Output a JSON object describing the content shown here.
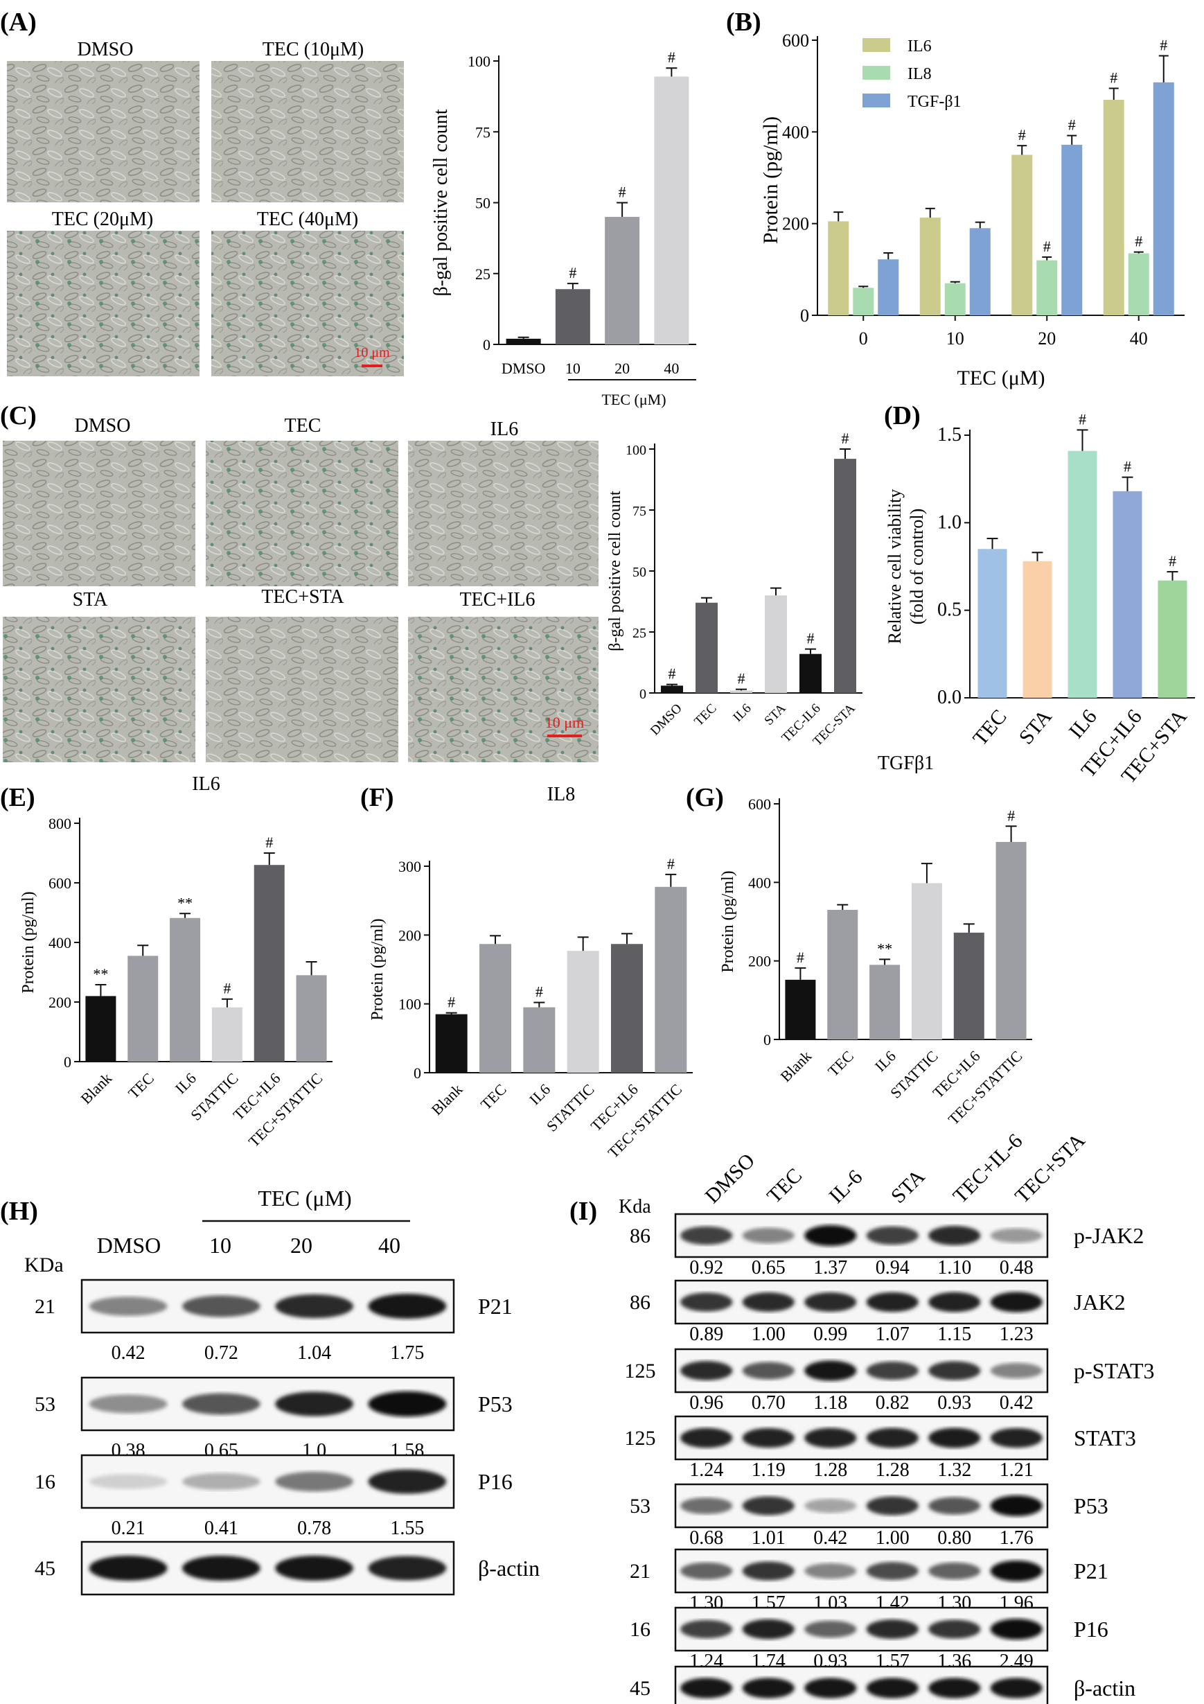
{
  "colors": {
    "black": "#111111",
    "dark": "#5f5f63",
    "mid": "#9d9da4",
    "light": "#d4d4d6",
    "il6": "#cbcc8c",
    "il8": "#a8dbb0",
    "tgf": "#7ea2d3",
    "d_tec": "#9fc1e6",
    "d_sta": "#f9d0a8",
    "d_il6": "#a7dfc9",
    "d_tecil6": "#8fa8d8",
    "d_tecsta": "#9ed59a",
    "micro": "#b5b6ae",
    "scale": "#e02020"
  },
  "panels": {
    "A": "(A)",
    "B": "(B)",
    "C": "(C)",
    "D": "(D)",
    "E": "(E)",
    "F": "(F)",
    "G": "(G)",
    "H": "(H)",
    "I": "(I)"
  },
  "micrographs": {
    "A": [
      "DMSO",
      "TEC (10μM)",
      "TEC (20μM)",
      "TEC (40μM)"
    ],
    "A_scale": "10 μm",
    "C": [
      "DMSO",
      "TEC",
      "IL6",
      "STA",
      "TEC+STA",
      "TEC+IL6"
    ],
    "C_scale": "10 μm"
  },
  "chart_data": [
    {
      "id": "A",
      "type": "bar",
      "title": "",
      "ylabel": "β-gal positive cell count",
      "categories": [
        "DMSO",
        "10",
        "20",
        "40"
      ],
      "values": [
        2,
        19.5,
        45,
        94.5
      ],
      "errors": [
        0.5,
        2,
        5,
        3
      ],
      "sig": [
        "",
        "#",
        "#",
        "#"
      ],
      "ylim": [
        0,
        100
      ],
      "yticks": [
        "0",
        "25",
        "50",
        "75",
        "100"
      ],
      "group_label": "TEC (μM)",
      "legend": []
    },
    {
      "id": "B",
      "type": "bar",
      "ylabel": "Protein (pg/ml)",
      "xlabel": "TEC (μM)",
      "categories": [
        "0",
        "10",
        "20",
        "40"
      ],
      "ylim": [
        0,
        600
      ],
      "yticks": [
        "0",
        "200",
        "400",
        "600"
      ],
      "series": [
        {
          "name": "IL6",
          "values": [
            205,
            213,
            350,
            470
          ],
          "errors": [
            20,
            20,
            20,
            25
          ],
          "sig": [
            "",
            "",
            "#",
            "#"
          ]
        },
        {
          "name": "IL8",
          "values": [
            60,
            70,
            120,
            135
          ],
          "errors": [
            3,
            3,
            7,
            3
          ],
          "sig": [
            "",
            "",
            "#",
            "#"
          ]
        },
        {
          "name": "TGF-β1",
          "values": [
            122,
            190,
            372,
            508
          ],
          "errors": [
            14,
            13,
            20,
            58
          ],
          "sig": [
            "",
            "",
            "#",
            "#"
          ]
        }
      ]
    },
    {
      "id": "C",
      "type": "bar",
      "ylabel": "β-gal positive cell count",
      "categories": [
        "DMSO",
        "TEC",
        "IL6",
        "STA",
        "TEC-IL6",
        "TEC-STA"
      ],
      "values": [
        3,
        37,
        1,
        40,
        16,
        96
      ],
      "errors": [
        0.5,
        2,
        0.5,
        3,
        2,
        4
      ],
      "sig": [
        "#",
        "",
        "#",
        "",
        "#",
        "#"
      ],
      "ylim": [
        0,
        100
      ],
      "yticks": [
        "0",
        "25",
        "50",
        "75",
        "100"
      ]
    },
    {
      "id": "D",
      "type": "bar",
      "ylabel": "Relative cell viability",
      "ylabel2": "(fold of control)",
      "categories": [
        "TEC",
        "STA",
        "IL6",
        "TEC+IL6",
        "TEC+STA"
      ],
      "values": [
        0.85,
        0.78,
        1.41,
        1.18,
        0.67
      ],
      "errors": [
        0.06,
        0.05,
        0.12,
        0.08,
        0.05
      ],
      "sig": [
        "",
        "",
        "#",
        "#",
        "#"
      ],
      "ylim": [
        0,
        1.5
      ],
      "yticks": [
        "0.0",
        "0.5",
        "1.0",
        "1.5"
      ]
    },
    {
      "id": "E",
      "type": "bar",
      "title": "IL6",
      "ylabel": "Protein (pg/ml)",
      "categories": [
        "Blank",
        "TEC",
        "IL6",
        "STATTIC",
        "TEC+IL6",
        "TEC+STATTIC"
      ],
      "values": [
        220,
        355,
        482,
        182,
        660,
        290
      ],
      "errors": [
        38,
        35,
        15,
        28,
        40,
        45
      ],
      "sig": [
        "**",
        "",
        "**",
        "#",
        "#",
        ""
      ],
      "ylim": [
        0,
        800
      ],
      "yticks": [
        "0",
        "200",
        "400",
        "600",
        "800"
      ]
    },
    {
      "id": "F",
      "type": "bar",
      "title": "IL8",
      "ylabel": "Protein (pg/ml)",
      "categories": [
        "Blank",
        "TEC",
        "IL6",
        "STATTIC",
        "TEC+IL6",
        "TEC+STATTIC"
      ],
      "values": [
        85,
        187,
        95,
        177,
        187,
        270
      ],
      "errors": [
        2,
        12,
        7,
        20,
        15,
        18
      ],
      "sig": [
        "#",
        "",
        "#",
        "",
        "",
        "#"
      ],
      "ylim": [
        0,
        300
      ],
      "yticks": [
        "0",
        "100",
        "200",
        "300"
      ]
    },
    {
      "id": "G",
      "type": "bar",
      "title": "TGFβ1",
      "ylabel": "Protein (pg/ml)",
      "categories": [
        "Blank",
        "TEC",
        "IL6",
        "STATTIC",
        "TEC+IL6",
        "TEC+STATTIC"
      ],
      "values": [
        152,
        330,
        190,
        398,
        272,
        503
      ],
      "errors": [
        30,
        13,
        14,
        50,
        22,
        40
      ],
      "sig": [
        "#",
        "",
        "**",
        "",
        "",
        "#"
      ],
      "ylim": [
        0,
        600
      ],
      "yticks": [
        "0",
        "200",
        "400",
        "600"
      ]
    }
  ],
  "blot_H": {
    "header": "TEC (μM)",
    "kda_label": "KDa",
    "lanes": [
      "DMSO",
      "10",
      "20",
      "40"
    ],
    "rows": [
      {
        "kda": "21",
        "name": "P21",
        "values": [
          "0.42",
          "0.72",
          "1.04",
          "1.75"
        ],
        "intensity": [
          0.45,
          0.65,
          0.85,
          0.95
        ]
      },
      {
        "kda": "53",
        "name": "P53",
        "values": [
          "0.38",
          "0.65",
          "1.0",
          "1.58"
        ],
        "intensity": [
          0.4,
          0.65,
          0.9,
          0.98
        ]
      },
      {
        "kda": "16",
        "name": "P16",
        "values": [
          "0.21",
          "0.41",
          "0.78",
          "1.55"
        ],
        "intensity": [
          0.1,
          0.25,
          0.5,
          0.9
        ]
      },
      {
        "kda": "45",
        "name": "β-actin",
        "values": [],
        "intensity": [
          0.95,
          0.95,
          0.95,
          0.9
        ]
      }
    ]
  },
  "blot_I": {
    "kda_label": "Kda",
    "lanes": [
      "DMSO",
      "TEC",
      "IL-6",
      "STA",
      "TEC+IL-6",
      "TEC+STA"
    ],
    "rows": [
      {
        "kda": "86",
        "name": "p-JAK2",
        "values": [
          "0.92",
          "0.65",
          "1.37",
          "0.94",
          "1.10",
          "0.48"
        ],
        "intensity": [
          0.75,
          0.45,
          1,
          0.75,
          0.85,
          0.35
        ]
      },
      {
        "kda": "86",
        "name": "JAK2",
        "values": [
          "0.89",
          "1.00",
          "0.99",
          "1.07",
          "1.15",
          "1.23"
        ],
        "intensity": [
          0.8,
          0.85,
          0.85,
          0.88,
          0.9,
          0.95
        ]
      },
      {
        "kda": "125",
        "name": "p-STAT3",
        "values": [
          "0.96",
          "0.70",
          "1.18",
          "0.82",
          "0.93",
          "0.42"
        ],
        "intensity": [
          0.85,
          0.65,
          0.95,
          0.75,
          0.8,
          0.45
        ]
      },
      {
        "kda": "125",
        "name": "STAT3",
        "values": [
          "1.24",
          "1.19",
          "1.28",
          "1.28",
          "1.32",
          "1.21"
        ],
        "intensity": [
          0.9,
          0.88,
          0.9,
          0.9,
          0.92,
          0.88
        ]
      },
      {
        "kda": "53",
        "name": "P53",
        "values": [
          "0.68",
          "1.01",
          "0.42",
          "1.00",
          "0.80",
          "1.76"
        ],
        "intensity": [
          0.55,
          0.8,
          0.3,
          0.8,
          0.65,
          1
        ]
      },
      {
        "kda": "21",
        "name": "P21",
        "values": [
          "1.30",
          "1.57",
          "1.03",
          "1.42",
          "1.30",
          "1.96"
        ],
        "intensity": [
          0.6,
          0.8,
          0.45,
          0.7,
          0.6,
          1
        ]
      },
      {
        "kda": "16",
        "name": "P16",
        "values": [
          "1.24",
          "1.74",
          "0.93",
          "1.57",
          "1.36",
          "2.49"
        ],
        "intensity": [
          0.75,
          0.9,
          0.6,
          0.85,
          0.8,
          1
        ]
      },
      {
        "kda": "45",
        "name": "β-actin",
        "values": [],
        "intensity": [
          0.95,
          0.95,
          0.95,
          0.95,
          0.95,
          0.95
        ]
      }
    ]
  }
}
